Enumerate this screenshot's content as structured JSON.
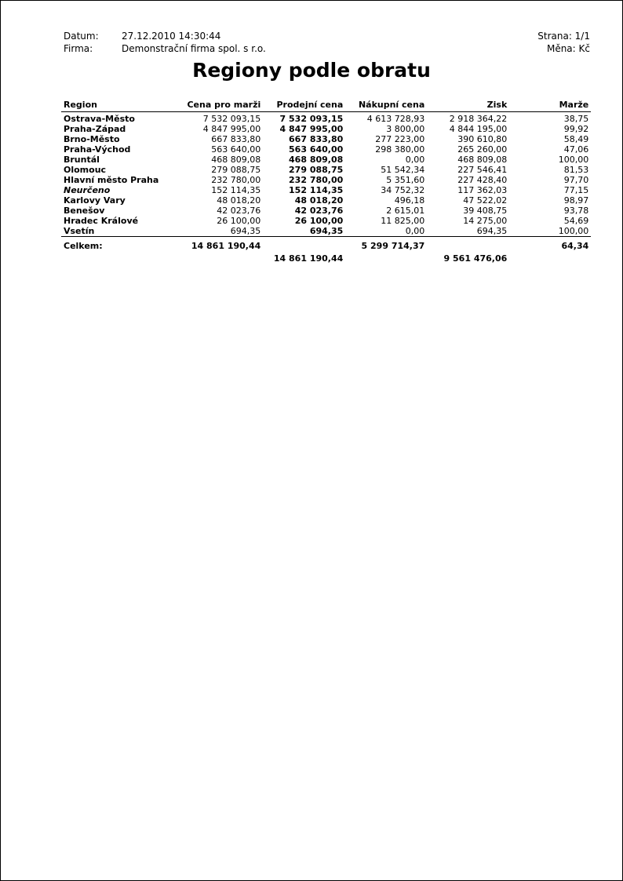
{
  "header": {
    "date_label": "Datum:",
    "date_value": "27.12.2010 14:30:44",
    "firm_label": "Firma:",
    "firm_value": "Demonstrační firma spol. s r.o.",
    "page": "Strana: 1/1",
    "currency": "Měna: Kč"
  },
  "title": "Regiony podle obratu",
  "columns": [
    "Region",
    "Cena pro marži",
    "Prodejní cena",
    "Nákupní cena",
    "Zisk",
    "Marže"
  ],
  "rows": [
    [
      "Ostrava-Město",
      "7 532 093,15",
      "7 532 093,15",
      "4 613 728,93",
      "2 918 364,22",
      "38,75"
    ],
    [
      "Praha-Západ",
      "4 847 995,00",
      "4 847 995,00",
      "3 800,00",
      "4 844 195,00",
      "99,92"
    ],
    [
      "Brno-Město",
      "667 833,80",
      "667 833,80",
      "277 223,00",
      "390 610,80",
      "58,49"
    ],
    [
      "Praha-Východ",
      "563 640,00",
      "563 640,00",
      "298 380,00",
      "265 260,00",
      "47,06"
    ],
    [
      "Bruntál",
      "468 809,08",
      "468 809,08",
      "0,00",
      "468 809,08",
      "100,00"
    ],
    [
      "Olomouc",
      "279 088,75",
      "279 088,75",
      "51 542,34",
      "227 546,41",
      "81,53"
    ],
    [
      "Hlavní město Praha",
      "232 780,00",
      "232 780,00",
      "5 351,60",
      "227 428,40",
      "97,70"
    ],
    [
      "Neurčeno",
      "152 114,35",
      "152 114,35",
      "34 752,32",
      "117 362,03",
      "77,15"
    ],
    [
      "Karlovy Vary",
      "48 018,20",
      "48 018,20",
      "496,18",
      "47 522,02",
      "98,97"
    ],
    [
      "Benešov",
      "42 023,76",
      "42 023,76",
      "2 615,01",
      "39 408,75",
      "93,78"
    ],
    [
      "Hradec Králové",
      "26 100,00",
      "26 100,00",
      "11 825,00",
      "14 275,00",
      "54,69"
    ],
    [
      "Vsetín",
      "694,35",
      "694,35",
      "0,00",
      "694,35",
      "100,00"
    ]
  ],
  "totals": {
    "label": "Celkem:",
    "cena_pro_marzi": "14 861 190,44",
    "nakupni_cena": "5 299 714,37",
    "marze": "64,34",
    "prodejni_cena": "14 861 190,44",
    "zisk": "9 561 476,06"
  }
}
